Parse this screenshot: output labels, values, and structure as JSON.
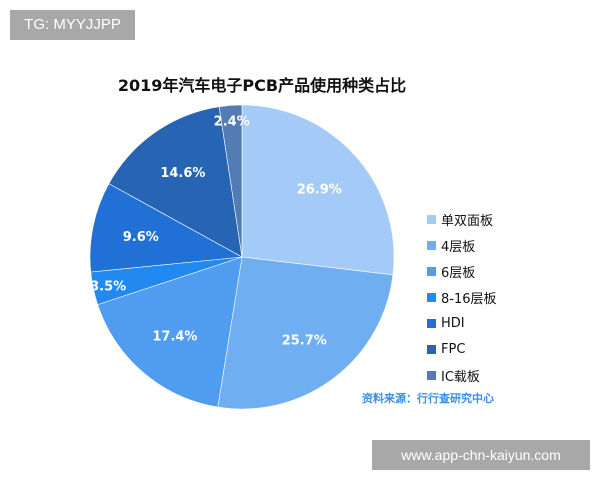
{
  "watermarks": {
    "top_left": "TG: MYYJJPP",
    "bottom_right": "www.app-chn-kaiyun.com"
  },
  "chart_data": {
    "type": "pie",
    "title": "2019年汽车电子PCB产品使用种类占比",
    "start": "top",
    "direction": "clockwise",
    "categories": [
      "单双面板",
      "4层板",
      "6层板",
      "8-16层板",
      "HDI",
      "FPC",
      "IC载板"
    ],
    "values": [
      26.9,
      25.7,
      17.4,
      3.5,
      9.6,
      14.6,
      2.4
    ],
    "labels": [
      "26.9%",
      "25.7%",
      "17.4%",
      "3.5%",
      "9.6%",
      "14.6%",
      "2.4%"
    ],
    "colors": [
      "#a4cbf7",
      "#70aef2",
      "#4f9cf0",
      "#2189f0",
      "#2070d6",
      "#2764b4",
      "#537cb4"
    ],
    "legend_position": "right",
    "source": "资料来源：行行查研究中心"
  }
}
